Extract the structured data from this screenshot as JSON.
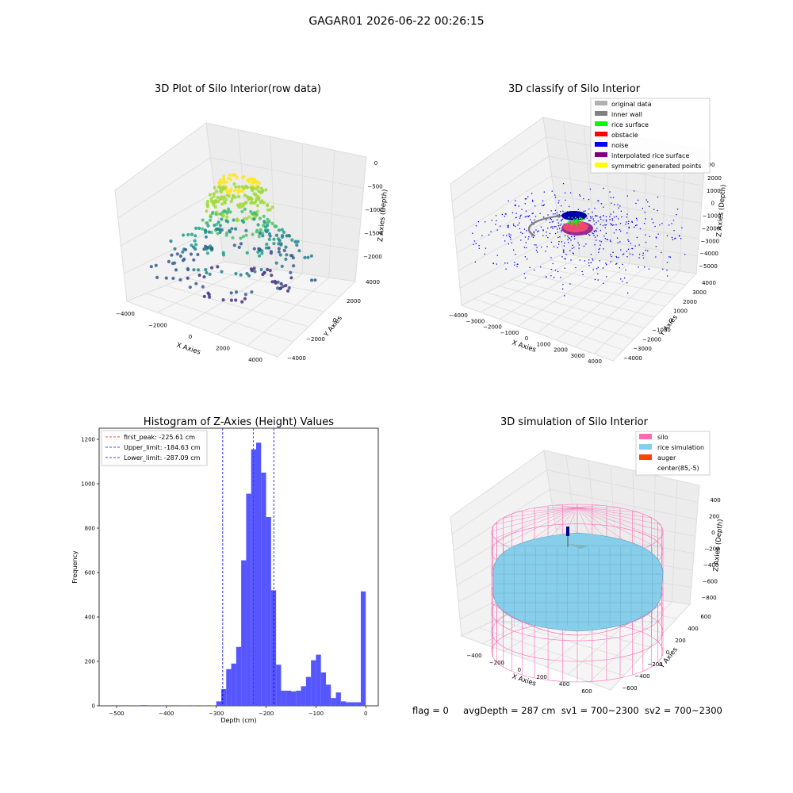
{
  "suptitle": "GAGAR01 2026-06-22 00:26:15",
  "footer": {
    "flag": "flag = 0",
    "avg": "avgDepth = 287 cm",
    "sv1": "sv1 = 700~2300",
    "sv2": "sv2 = 700~2300"
  },
  "colors": {
    "histogram_bar": "#4d4dff",
    "first_peak": "#ff0000",
    "limits": "#0000ff",
    "silo": "#ff69b4",
    "rice_simulation": "#87ceeb",
    "auger": "#ff4500",
    "noise": "#0000ff",
    "rice_surface": "#00ff00",
    "inner_wall": "#808080"
  },
  "chart_data": [
    {
      "type": "scatter",
      "projection": "3d",
      "title": "3D Plot of Silo Interior(row data)",
      "xlabel": "X Axies",
      "ylabel": "Y Axies",
      "zlabel": "Z Axies (Depth)",
      "xticks": [
        "−4000",
        "−2000",
        "0",
        "2000",
        "4000"
      ],
      "yticks": [
        "−4000",
        "−2000",
        "0",
        "2000",
        "4000"
      ],
      "zticks": [
        "0",
        "−500",
        "−1000",
        "−1500",
        "−2000"
      ],
      "colormap": "viridis"
    },
    {
      "type": "scatter",
      "projection": "3d",
      "title": "3D classify of Silo Interior",
      "xlabel": "X Axies",
      "ylabel": "Y Axies",
      "zlabel": "Z Axies (Depth)",
      "xticks": [
        "−4000",
        "−3000",
        "−2000",
        "−1000",
        "0",
        "1000",
        "2000",
        "3000",
        "4000"
      ],
      "yticks": [
        "−4000",
        "−3000",
        "−2000",
        "−1000",
        "0",
        "1000",
        "2000",
        "3000",
        "4000"
      ],
      "zticks": [
        "2000",
        "1000",
        "0",
        "−1000",
        "−2000",
        "−3000",
        "−4000",
        "−5000"
      ],
      "ztick_top_partial": "00",
      "legend": [
        {
          "label": "original data",
          "color": "#b0b0b0"
        },
        {
          "label": "inner wall",
          "color": "#808080"
        },
        {
          "label": "rice surface",
          "color": "#00ff00"
        },
        {
          "label": "obstacle",
          "color": "#ff0000"
        },
        {
          "label": "noise",
          "color": "#0000ff"
        },
        {
          "label": "interpolated rice surface",
          "color": "#800080"
        },
        {
          "label": "symmetric generated points",
          "color": "#ffff00"
        }
      ],
      "legend_position": "top-right"
    },
    {
      "type": "bar",
      "subtype": "histogram",
      "title": "Histogram of Z-Axies (Height) Values",
      "xlabel": "Depth (cm)",
      "ylabel": "Frequency",
      "xlim": [
        -535,
        25
      ],
      "ylim": [
        0,
        1250
      ],
      "xticks": [
        -500,
        -400,
        -300,
        -200,
        -100,
        0
      ],
      "xtick_labels": [
        "−500",
        "−400",
        "−300",
        "−200",
        "−100",
        "0"
      ],
      "yticks": [
        0,
        200,
        400,
        600,
        800,
        1000,
        1200
      ],
      "bin_width": 10,
      "bins": [
        {
          "x": -450,
          "v": 3
        },
        {
          "x": -410,
          "v": 2
        },
        {
          "x": -370,
          "v": 2
        },
        {
          "x": -350,
          "v": 2
        },
        {
          "x": -330,
          "v": 2
        },
        {
          "x": -310,
          "v": 2
        },
        {
          "x": -300,
          "v": 20
        },
        {
          "x": -290,
          "v": 75
        },
        {
          "x": -280,
          "v": 165
        },
        {
          "x": -270,
          "v": 190
        },
        {
          "x": -260,
          "v": 265
        },
        {
          "x": -250,
          "v": 655
        },
        {
          "x": -240,
          "v": 955
        },
        {
          "x": -230,
          "v": 1155
        },
        {
          "x": -220,
          "v": 1185
        },
        {
          "x": -210,
          "v": 1050
        },
        {
          "x": -200,
          "v": 850
        },
        {
          "x": -190,
          "v": 520
        },
        {
          "x": -180,
          "v": 185
        },
        {
          "x": -170,
          "v": 68
        },
        {
          "x": -160,
          "v": 68
        },
        {
          "x": -150,
          "v": 65
        },
        {
          "x": -140,
          "v": 68
        },
        {
          "x": -130,
          "v": 88
        },
        {
          "x": -120,
          "v": 130
        },
        {
          "x": -110,
          "v": 205
        },
        {
          "x": -100,
          "v": 230
        },
        {
          "x": -90,
          "v": 150
        },
        {
          "x": -80,
          "v": 95
        },
        {
          "x": -70,
          "v": 35
        },
        {
          "x": -60,
          "v": 60
        },
        {
          "x": -50,
          "v": 20
        },
        {
          "x": -40,
          "v": 16
        },
        {
          "x": -30,
          "v": 16
        },
        {
          "x": -20,
          "v": 16
        },
        {
          "x": -10,
          "v": 515
        }
      ],
      "vlines": [
        {
          "label": "first_peak: -225.61 cm",
          "x": -225.61,
          "color": "#ff0000"
        },
        {
          "label": "Upper_limit: -184.63 cm",
          "x": -184.63,
          "color": "#0000ff"
        },
        {
          "label": "Lower_limit: -287.09 cm",
          "x": -287.09,
          "color": "#0000ff"
        }
      ],
      "legend_position": "top-left"
    },
    {
      "type": "surface",
      "projection": "3d",
      "title": "3D simulation of Silo Interior",
      "xlabel": "X Axies",
      "ylabel": "Y Axies",
      "zlabel": "Z Axies (Depth)",
      "xticks": [
        "−400",
        "−200",
        "0",
        "200",
        "400",
        "600"
      ],
      "yticks": [
        "−600",
        "−400",
        "−200",
        "0",
        "200",
        "400",
        "600"
      ],
      "zticks": [
        "400",
        "200",
        "0",
        "−200",
        "−400",
        "−600",
        "−800"
      ],
      "legend": [
        {
          "label": "silo",
          "color": "#ff69b4"
        },
        {
          "label": "rice simulation",
          "color": "#87ceeb"
        },
        {
          "label": "auger",
          "color": "#ff4500"
        },
        {
          "label": "center(85,-5)",
          "color": "#ffffff"
        }
      ],
      "legend_position": "top-right"
    }
  ]
}
